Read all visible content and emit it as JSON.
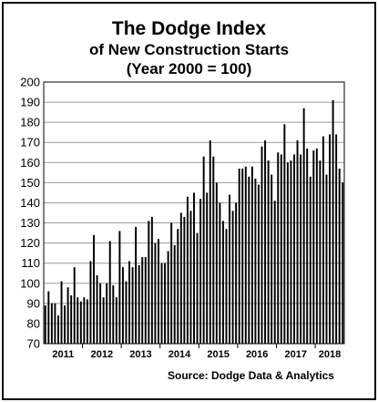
{
  "chart_data": {
    "type": "bar",
    "title": "The Dodge Index",
    "subtitle": "of New Construction Starts",
    "subtitle2": "(Year 2000 = 100)",
    "ylim": [
      70,
      200
    ],
    "yticks": [
      70,
      80,
      90,
      100,
      110,
      120,
      130,
      140,
      150,
      160,
      170,
      180,
      190,
      200
    ],
    "xlabels": [
      "2011",
      "2012",
      "2013",
      "2014",
      "2015",
      "2016",
      "2017",
      "2018"
    ],
    "grid": true,
    "bar_color": "#000000",
    "source": "Source:  Dodge Data & Analytics",
    "series": [
      {
        "values": [
          89,
          96,
          90,
          90,
          84,
          101,
          89,
          98,
          94,
          108,
          93,
          91,
          93,
          92,
          111,
          124,
          104,
          100,
          93,
          100,
          121,
          99,
          93,
          126,
          108,
          101,
          111,
          108,
          128,
          109,
          113,
          113,
          131,
          133,
          120,
          122,
          110,
          110,
          116,
          130,
          119,
          127,
          135,
          133,
          143,
          136,
          145,
          125,
          142,
          163,
          145,
          171,
          163,
          150,
          140,
          131,
          127,
          144,
          136,
          140,
          157,
          157,
          158,
          153,
          158,
          152,
          149,
          168,
          171,
          161,
          154,
          141,
          165,
          164,
          179,
          160,
          161,
          164,
          171,
          164,
          187,
          167,
          153,
          166,
          167,
          161,
          173,
          154,
          174,
          191,
          174,
          157,
          150
        ]
      }
    ]
  }
}
